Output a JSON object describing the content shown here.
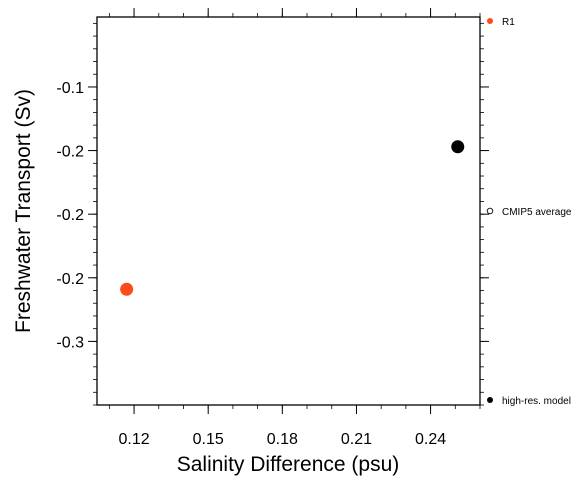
{
  "chart_data": {
    "type": "scatter",
    "xlabel": "Salinity Difference (psu)",
    "ylabel": "Freshwater Transport (Sv)",
    "xlim": [
      0.105,
      0.26
    ],
    "ylim": [
      -0.35,
      -0.045
    ],
    "x_ticks": [
      0.12,
      0.15,
      0.18,
      0.21,
      0.24
    ],
    "x_tick_labels": [
      "0.12",
      "0.15",
      "0.18",
      "0.21",
      "0.24"
    ],
    "y_ticks": [
      -0.1,
      -0.15,
      -0.2,
      -0.25,
      -0.3
    ],
    "y_tick_labels": [
      "-0.1",
      "-0.2",
      "-0.2",
      "-0.2",
      "-0.3"
    ],
    "grid": false,
    "legend_position": "right",
    "points": [
      {
        "x": 0.117,
        "y": -0.259,
        "color": "#ff4a1c",
        "series": "R1"
      },
      {
        "x": 0.251,
        "y": -0.147,
        "color": "#000000",
        "series": "high-res. model"
      }
    ],
    "legend": [
      {
        "label": "R1",
        "marker": "filled",
        "color": "#ff4a1c"
      },
      {
        "label": "CMIP5 average",
        "marker": "open",
        "color": "#000000"
      },
      {
        "label": "high-res. model",
        "marker": "filled",
        "color": "#000000"
      }
    ]
  }
}
